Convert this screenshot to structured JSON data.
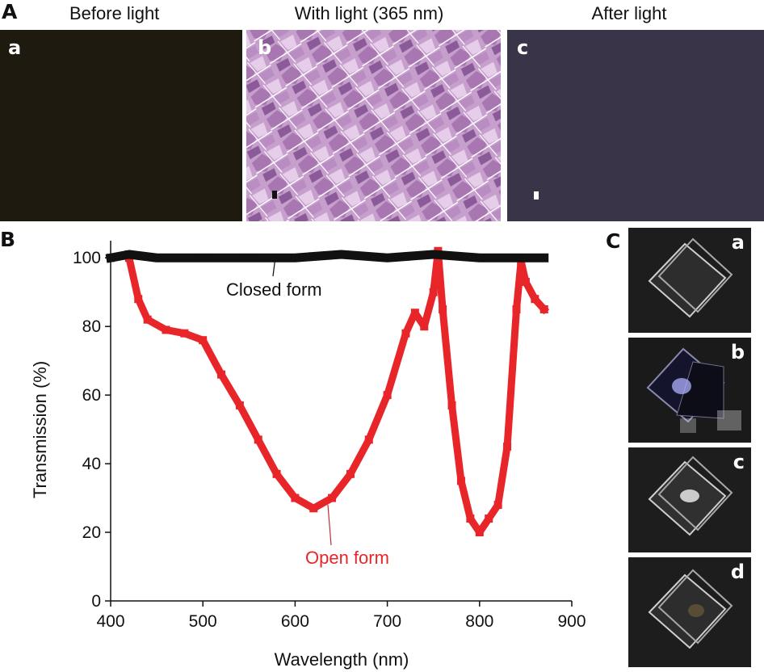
{
  "panel_A": {
    "letter": "A",
    "images": [
      {
        "sub": "a",
        "title": "Before light"
      },
      {
        "sub": "b",
        "title": "With light (365 nm)"
      },
      {
        "sub": "c",
        "title": "After light"
      }
    ]
  },
  "panel_B": {
    "letter": "B",
    "annotations": {
      "closed": "Closed form",
      "open": "Open form"
    }
  },
  "panel_C": {
    "letter": "C",
    "photos": [
      {
        "sub": "a"
      },
      {
        "sub": "b"
      },
      {
        "sub": "c"
      },
      {
        "sub": "d"
      }
    ]
  },
  "colors": {
    "closed": "#111111",
    "open": "#e8262a",
    "micro_a": "#1f1a10",
    "micro_c": "#3a3448"
  },
  "chart_data": {
    "type": "scatter",
    "xlabel": "Wavelength (nm)",
    "ylabel": "Transmission (%)",
    "xlim": [
      400,
      900
    ],
    "ylim": [
      0,
      105
    ],
    "x_ticks": [
      "400",
      "500",
      "600",
      "700",
      "800",
      "900"
    ],
    "y_ticks": [
      "0",
      "20",
      "40",
      "60",
      "80",
      "100"
    ],
    "series": [
      {
        "name": "Closed form",
        "x": [
          400,
          420,
          450,
          500,
          550,
          600,
          650,
          700,
          750,
          800,
          840,
          860,
          870
        ],
        "y": [
          100,
          101,
          100,
          100,
          100,
          100,
          101,
          100,
          101,
          100,
          100,
          100,
          100
        ]
      },
      {
        "name": "Open form",
        "x": [
          420,
          430,
          440,
          460,
          480,
          500,
          520,
          540,
          560,
          580,
          600,
          620,
          640,
          660,
          680,
          700,
          720,
          730,
          740,
          750,
          755,
          760,
          770,
          780,
          790,
          800,
          810,
          820,
          830,
          840,
          845,
          850,
          860,
          870
        ],
        "y": [
          100,
          88,
          82,
          79,
          78,
          76,
          66,
          57,
          47,
          37,
          30,
          27,
          30,
          37,
          47,
          60,
          78,
          84,
          80,
          90,
          102,
          85,
          57,
          35,
          24,
          20,
          24,
          28,
          45,
          85,
          99,
          93,
          88,
          85
        ]
      }
    ]
  }
}
